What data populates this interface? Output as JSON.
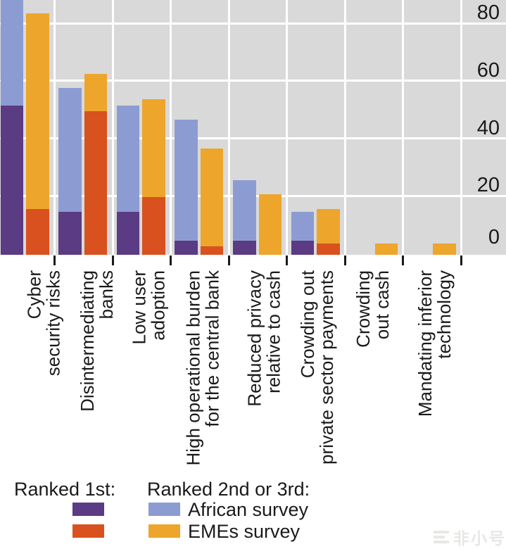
{
  "colors": {
    "ranked1_african": "#5b3b83",
    "ranked1_emes": "#d8511e",
    "ranked23_african": "#8c9cd2",
    "ranked23_emes": "#eda52b",
    "plot_bg": "#d9d9d9",
    "grid": "#ffffff",
    "text": "#1a1a1a"
  },
  "legend": {
    "ranked1_label": "Ranked 1st:",
    "ranked23_label": "Ranked 2nd or 3rd:",
    "african_label": "African survey",
    "emes_label": "EMEs survey"
  },
  "y_axis": {
    "tick_labels": [
      "0",
      "20",
      "40",
      "60",
      "80"
    ]
  },
  "watermark": {
    "text": "非小号"
  },
  "chart_data": {
    "type": "bar",
    "stacked": true,
    "grid": true,
    "legend_position": "bottom",
    "categories": [
      [
        "Cyber",
        "security risks"
      ],
      [
        "Disintermediating",
        "banks"
      ],
      [
        "Low user",
        "adoption"
      ],
      [
        "High operational burden",
        "for the central bank"
      ],
      [
        "Reduced privacy",
        "relative to cash"
      ],
      [
        "Crowding out",
        "private sector payments"
      ],
      [
        "Crowding",
        "out cash"
      ],
      [
        "Mandating inferior",
        "technology"
      ]
    ],
    "series": [
      {
        "name": "African survey — Ranked 1st",
        "values": [
          52,
          15,
          15,
          5,
          5,
          5,
          0,
          0
        ]
      },
      {
        "name": "African survey — Ranked 2nd or 3rd",
        "values": [
          38,
          43,
          37,
          42,
          21,
          10,
          0,
          0
        ]
      },
      {
        "name": "EMEs survey — Ranked 1st",
        "values": [
          16,
          50,
          20,
          3,
          0,
          4,
          0,
          0
        ]
      },
      {
        "name": "EMEs survey — Ranked 2nd or 3rd",
        "values": [
          68,
          13,
          34,
          34,
          21,
          12,
          4,
          4
        ]
      }
    ],
    "stack_totals": {
      "african": [
        90,
        58,
        52,
        47,
        26,
        15,
        0,
        0
      ],
      "emes": [
        84,
        63,
        54,
        37,
        21,
        16,
        4,
        4
      ]
    },
    "y_ticks": [
      0,
      20,
      40,
      60,
      80
    ],
    "ylim_visible": [
      0,
      88
    ],
    "first_african_bar_clipped_at_top": true
  }
}
